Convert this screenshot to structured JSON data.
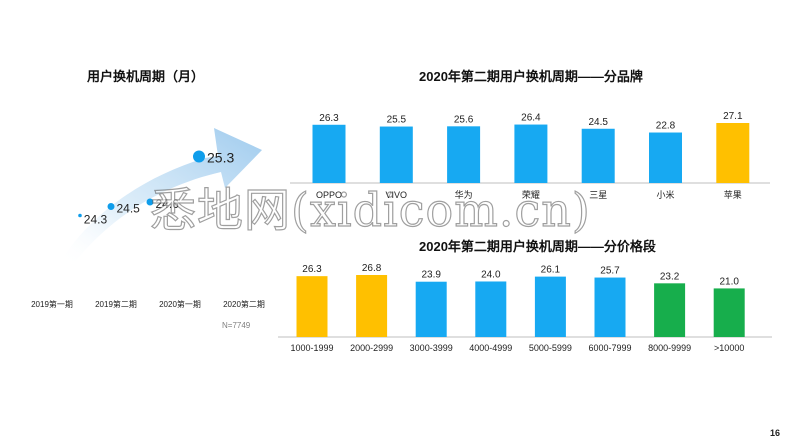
{
  "colors": {
    "blue": "#17A9F2",
    "gold": "#FFC000",
    "green": "#17AE4C",
    "arrow": "#A9D3F2",
    "dot": "#0F9DEB"
  },
  "left_panel": {
    "title": "用户换机周期（月）",
    "periods": [
      "2019第一期",
      "2019第二期",
      "2020第一期",
      "2020第二期"
    ],
    "note": "N=7749"
  },
  "watermark": "悉地网(xidicom.cn)",
  "page_number": "16",
  "chart_data": [
    {
      "type": "scatter",
      "title": "用户换机周期（月）",
      "x": [
        "2019第一期",
        "2019第二期",
        "2020第一期",
        "2020第二期"
      ],
      "values": [
        24.3,
        24.5,
        24.6,
        25.3
      ],
      "labels": [
        "24.3",
        "24.5",
        "24.6",
        "25.3"
      ]
    },
    {
      "type": "bar",
      "title": "2020年第二期用户换机周期——分品牌",
      "categories": [
        "OPPO",
        "VIVO",
        "华为",
        "荣耀",
        "三星",
        "小米",
        "苹果"
      ],
      "values": [
        26.3,
        25.5,
        25.6,
        26.4,
        24.5,
        22.8,
        27.1
      ],
      "labels": [
        "26.3",
        "25.5",
        "25.6",
        "26.4",
        "24.5",
        "22.8",
        "27.1"
      ],
      "colors": [
        "#17A9F2",
        "#17A9F2",
        "#17A9F2",
        "#17A9F2",
        "#17A9F2",
        "#17A9F2",
        "#FFC000"
      ],
      "ylim": [
        0,
        27.1
      ]
    },
    {
      "type": "bar",
      "title": "2020年第二期用户换机周期——分价格段",
      "categories": [
        "1000-1999",
        "2000-2999",
        "3000-3999",
        "4000-4999",
        "5000-5999",
        "6000-7999",
        "8000-9999",
        ">10000"
      ],
      "values": [
        26.3,
        26.8,
        23.9,
        24.0,
        26.1,
        25.7,
        23.2,
        21.0
      ],
      "labels": [
        "26.3",
        "26.8",
        "23.9",
        "24.0",
        "26.1",
        "25.7",
        "23.2",
        "21.0"
      ],
      "colors": [
        "#FFC000",
        "#FFC000",
        "#17A9F2",
        "#17A9F2",
        "#17A9F2",
        "#17A9F2",
        "#17AE4C",
        "#17AE4C"
      ],
      "ylim": [
        0,
        26.8
      ]
    }
  ]
}
